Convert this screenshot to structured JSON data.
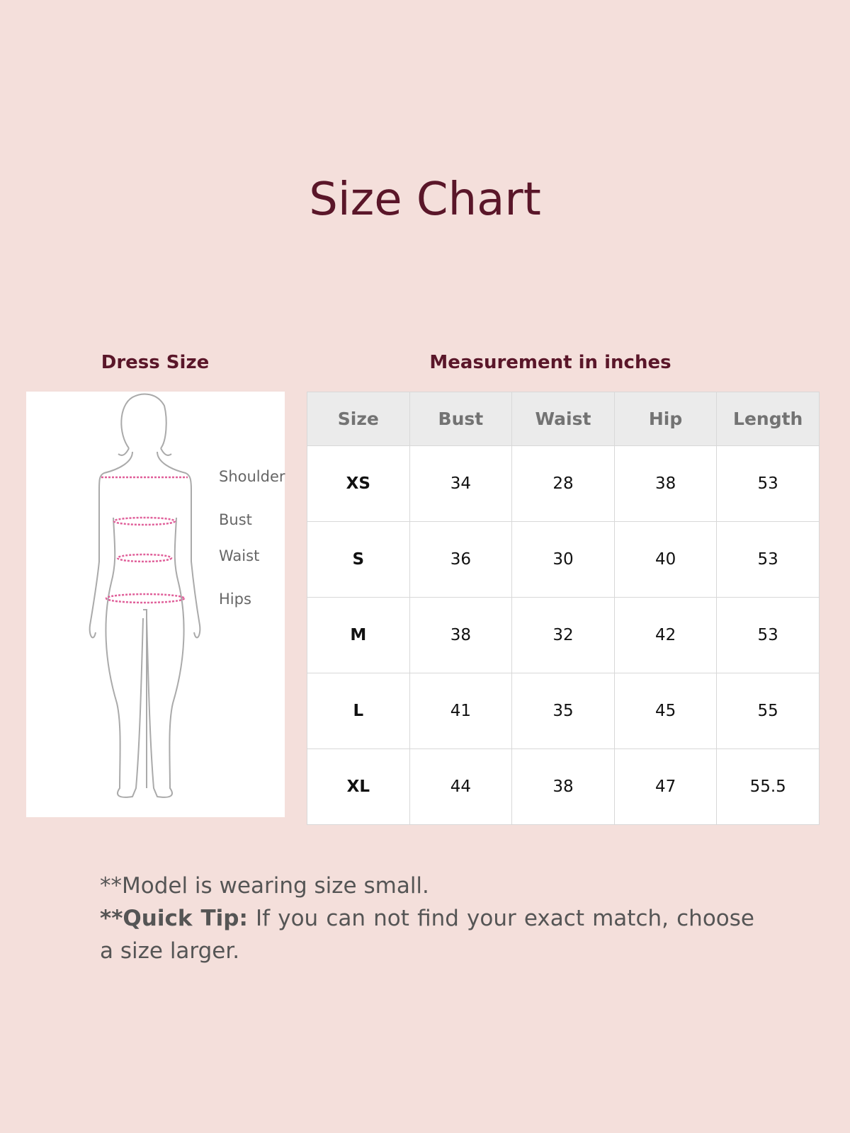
{
  "title": "Size Chart",
  "figure": {
    "heading": "Dress Size",
    "labels": [
      "Shoulder",
      "Bust",
      "Waist",
      "Hips"
    ],
    "measure_line_color": "#e0609a"
  },
  "table": {
    "heading": "Measurement in inches",
    "columns": [
      "Size",
      "Bust",
      "Waist",
      "Hip",
      "Length"
    ],
    "rows": [
      [
        "XS",
        "34",
        "28",
        "38",
        "53"
      ],
      [
        "S",
        "36",
        "30",
        "40",
        "53"
      ],
      [
        "M",
        "38",
        "32",
        "42",
        "53"
      ],
      [
        "L",
        "41",
        "35",
        "45",
        "55"
      ],
      [
        "XL",
        "44",
        "38",
        "47",
        "55.5"
      ]
    ]
  },
  "notes": {
    "model": "**Model is wearing size small.",
    "tip_prefix": "**Quick Tip:",
    "tip_text": " If you can not find your exact match, choose a size larger."
  },
  "colors": {
    "background": "#f4dfdb",
    "accent": "#5a1629"
  }
}
